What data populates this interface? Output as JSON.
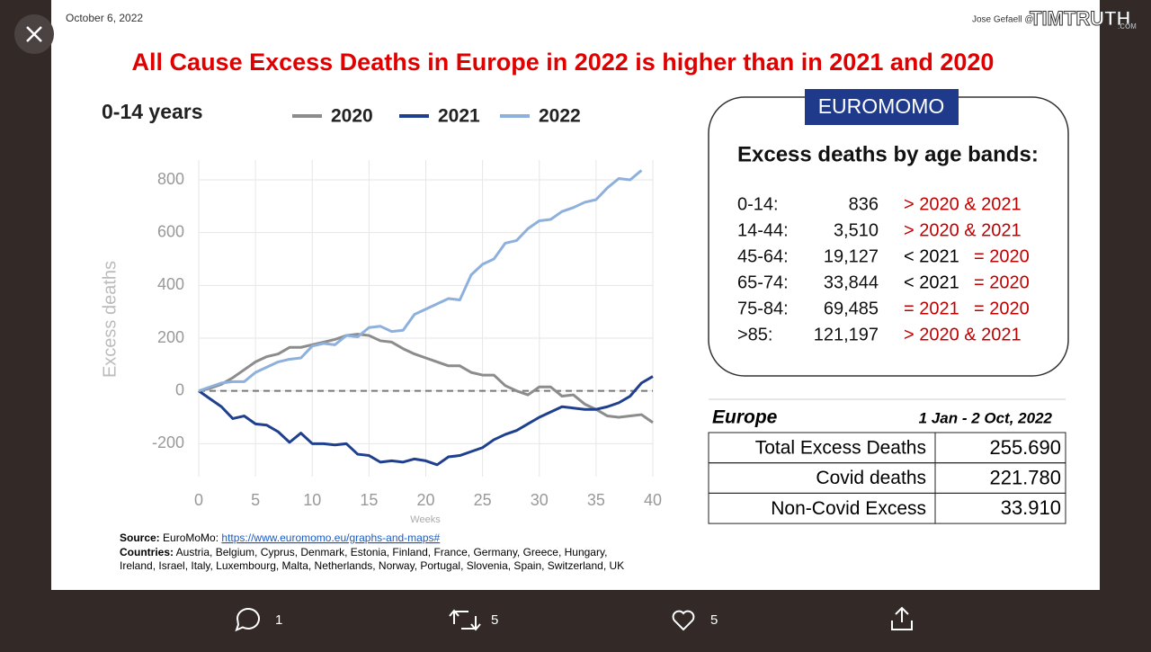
{
  "slide": {
    "date": "October 6, 2022",
    "author": "Jose Gefaell @",
    "watermark": "TIMTRUTH",
    "watermark_suffix": ".COM",
    "title": "All Cause Excess Deaths in Europe in 2022 is higher than in 2021 and 2020",
    "chart": {
      "type": "line",
      "title": "0-14 years",
      "x_label": "Weeks",
      "y_label": "Excess deaths",
      "x": [
        0,
        1,
        2,
        3,
        4,
        5,
        6,
        7,
        8,
        9,
        10,
        11,
        12,
        13,
        14,
        15,
        16,
        17,
        18,
        19,
        20,
        21,
        22,
        23,
        24,
        25,
        26,
        27,
        28,
        29,
        30,
        31,
        32,
        33,
        34,
        35,
        36,
        37,
        38,
        39,
        40
      ],
      "xlim": [
        0,
        40
      ],
      "xticks": [
        0,
        5,
        10,
        15,
        20,
        25,
        30,
        35,
        40
      ],
      "ylim": [
        -325,
        875
      ],
      "yticks": [
        -200,
        0,
        200,
        400,
        600,
        800
      ],
      "grid": true,
      "series": [
        {
          "name": "2020",
          "color": "#8c8c8c",
          "values": [
            0,
            10,
            25,
            50,
            80,
            110,
            130,
            140,
            165,
            165,
            175,
            185,
            195,
            210,
            215,
            210,
            190,
            185,
            160,
            140,
            125,
            110,
            95,
            95,
            70,
            60,
            60,
            20,
            0,
            -15,
            15,
            15,
            -20,
            -15,
            -50,
            -70,
            -95,
            -100,
            -95,
            -90,
            -120
          ]
        },
        {
          "name": "2021",
          "color": "#1f3f8f",
          "values": [
            0,
            -30,
            -60,
            -105,
            -95,
            -125,
            -130,
            -155,
            -195,
            -160,
            -200,
            -200,
            -205,
            -200,
            -240,
            -245,
            -270,
            -265,
            -270,
            -258,
            -265,
            -280,
            -250,
            -245,
            -230,
            -215,
            -185,
            -165,
            -150,
            -125,
            -100,
            -80,
            -60,
            -65,
            -70,
            -70,
            -60,
            -45,
            -20,
            30,
            55
          ]
        },
        {
          "name": "2022",
          "color": "#8eb0dd",
          "values": [
            0,
            15,
            30,
            35,
            35,
            70,
            90,
            110,
            120,
            125,
            170,
            180,
            175,
            210,
            205,
            240,
            245,
            225,
            230,
            290,
            310,
            330,
            350,
            345,
            440,
            480,
            500,
            560,
            570,
            615,
            645,
            650,
            680,
            695,
            715,
            725,
            770,
            805,
            800,
            836,
            null
          ]
        }
      ]
    },
    "source": {
      "label": "Source:",
      "name": "EuroMoMo:",
      "url": "https://www.euromomo.eu/graphs-and-maps#",
      "countries_label": "Countries:",
      "countries": [
        "Austria, Belgium, Cyprus, Denmark, Estonia, Finland, France, Germany, Greece, Hungary,",
        "Ireland, Israel, Italy, Luxembourg, Malta, Netherlands, Norway, Portugal, Slovenia, Spain, Switzerland, UK"
      ]
    },
    "badge": "EUROMOMO",
    "age_bands": {
      "heading": "Excess deaths by age bands:",
      "rows": [
        {
          "band": "0-14:",
          "value": "836",
          "compare": [
            {
              "text": "> 2020 & 2021",
              "color": "#c00000"
            }
          ]
        },
        {
          "band": "14-44:",
          "value": "3,510",
          "compare": [
            {
              "text": "> 2020 & 2021",
              "color": "#c00000"
            }
          ]
        },
        {
          "band": "45-64:",
          "value": "19,127",
          "compare": [
            {
              "text": "< 2021",
              "color": "#000000"
            },
            {
              "text": "= 2020",
              "color": "#c00000"
            }
          ]
        },
        {
          "band": "65-74:",
          "value": "33,844",
          "compare": [
            {
              "text": "< 2021",
              "color": "#000000"
            },
            {
              "text": "= 2020",
              "color": "#c00000"
            }
          ]
        },
        {
          "band": "75-84:",
          "value": "69,485",
          "compare": [
            {
              "text": "= 2021",
              "color": "#c00000"
            },
            {
              "text": "= 2020",
              "color": "#c00000"
            }
          ]
        },
        {
          "band": ">85:",
          "value": "121,197",
          "compare": [
            {
              "text": "> 2020 & 2021",
              "color": "#c00000"
            }
          ]
        }
      ]
    },
    "europe_table": {
      "region": "Europe",
      "period": "1 Jan - 2 Oct, 2022",
      "rows": [
        [
          "Total Excess Deaths",
          "255.690"
        ],
        [
          "Covid deaths",
          "221.780"
        ],
        [
          "Non-Covid Excess",
          "33.910"
        ]
      ]
    }
  },
  "actions": {
    "replies": "1",
    "retweets": "5",
    "likes": "5"
  }
}
